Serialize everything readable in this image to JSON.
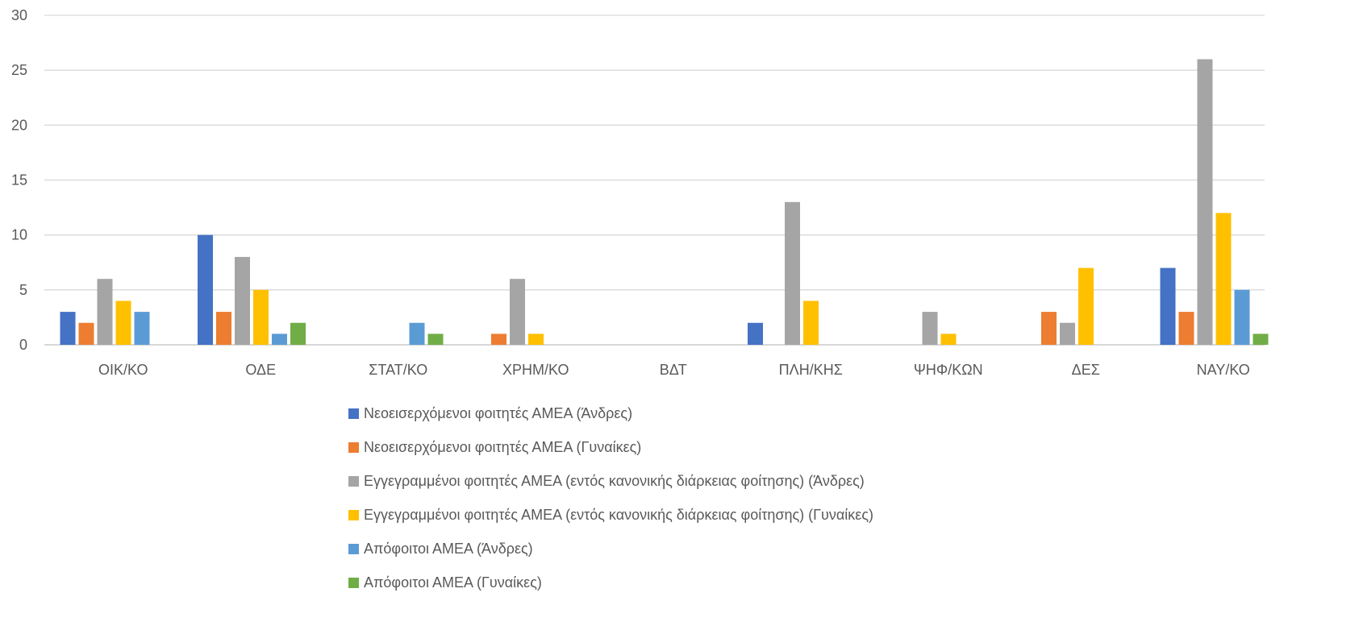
{
  "chart_data": {
    "type": "bar",
    "categories": [
      "ΟΙΚ/ΚΟ",
      "ΟΔΕ",
      "ΣΤΑΤ/ΚΟ",
      "ΧΡΗΜ/ΚΟ",
      "ΒΔΤ",
      "ΠΛΗ/ΚΗΣ",
      "ΨΗΦ/ΚΩΝ",
      "ΔΕΣ",
      "ΝΑΥ/ΚΟ"
    ],
    "ylim": [
      0,
      30
    ],
    "yticks": [
      "0",
      "5",
      "10",
      "15",
      "20",
      "25",
      "30"
    ],
    "grid": true,
    "legend_position": "bottom",
    "series": [
      {
        "name": "Νεοεισερχόμενοι φοιτητές ΑΜΕΑ (Άνδρες)",
        "color": "#4472C4",
        "values": [
          3,
          10,
          0,
          0,
          0,
          2,
          0,
          0,
          7
        ]
      },
      {
        "name": "Νεοεισερχόμενοι φοιτητές ΑΜΕΑ (Γυναίκες)",
        "color": "#ED7D31",
        "values": [
          2,
          3,
          0,
          1,
          0,
          0,
          0,
          3,
          3
        ]
      },
      {
        "name": "Εγγεγραμμένοι φοιτητές ΑΜΕΑ (εντός κανονικής διάρκειας φοίτησης) (Άνδρες)",
        "color": "#A5A5A5",
        "values": [
          6,
          8,
          0,
          6,
          0,
          13,
          3,
          2,
          26
        ]
      },
      {
        "name": "Εγγεγραμμένοι φοιτητές ΑΜΕΑ (εντός κανονικής διάρκειας φοίτησης) (Γυναίκες)",
        "color": "#FFC000",
        "values": [
          4,
          5,
          0,
          1,
          0,
          4,
          1,
          7,
          12
        ]
      },
      {
        "name": "Απόφοιτοι ΑΜΕΑ (Άνδρες)",
        "color": "#5B9BD5",
        "values": [
          3,
          1,
          2,
          0,
          0,
          0,
          0,
          0,
          5
        ]
      },
      {
        "name": "Απόφοιτοι ΑΜΕΑ (Γυναίκες)",
        "color": "#70AD47",
        "values": [
          0,
          2,
          1,
          0,
          0,
          0,
          0,
          0,
          1
        ]
      }
    ]
  }
}
